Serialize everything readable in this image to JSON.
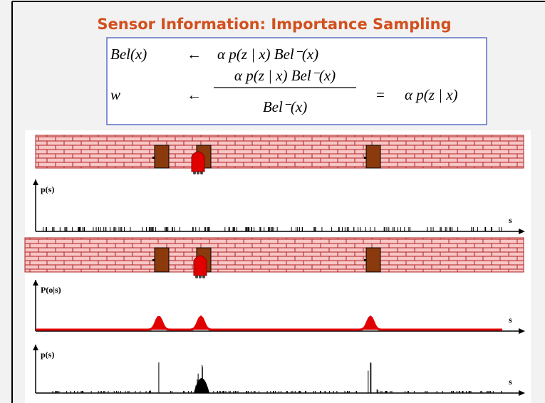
{
  "header": {
    "title": "Sensor Information: Importance Sampling"
  },
  "formula": {
    "row1": {
      "lhs": "Bel(x)",
      "arrow": "←",
      "rhs": "α p(z | x) Bel⁻(x)"
    },
    "row2": {
      "lhs": "w",
      "arrow": "←",
      "numerator": "α p(z | x) Bel⁻(x)",
      "denominator": "Bel⁻(x)",
      "equals": "=",
      "result": "α p(z | x)"
    }
  },
  "panels": [
    {
      "y_label": "p(s)",
      "x_label": "s"
    },
    {
      "y_label": "P(o|s)",
      "x_label": "s"
    },
    {
      "y_label": "p(s)",
      "x_label": "s"
    }
  ]
}
